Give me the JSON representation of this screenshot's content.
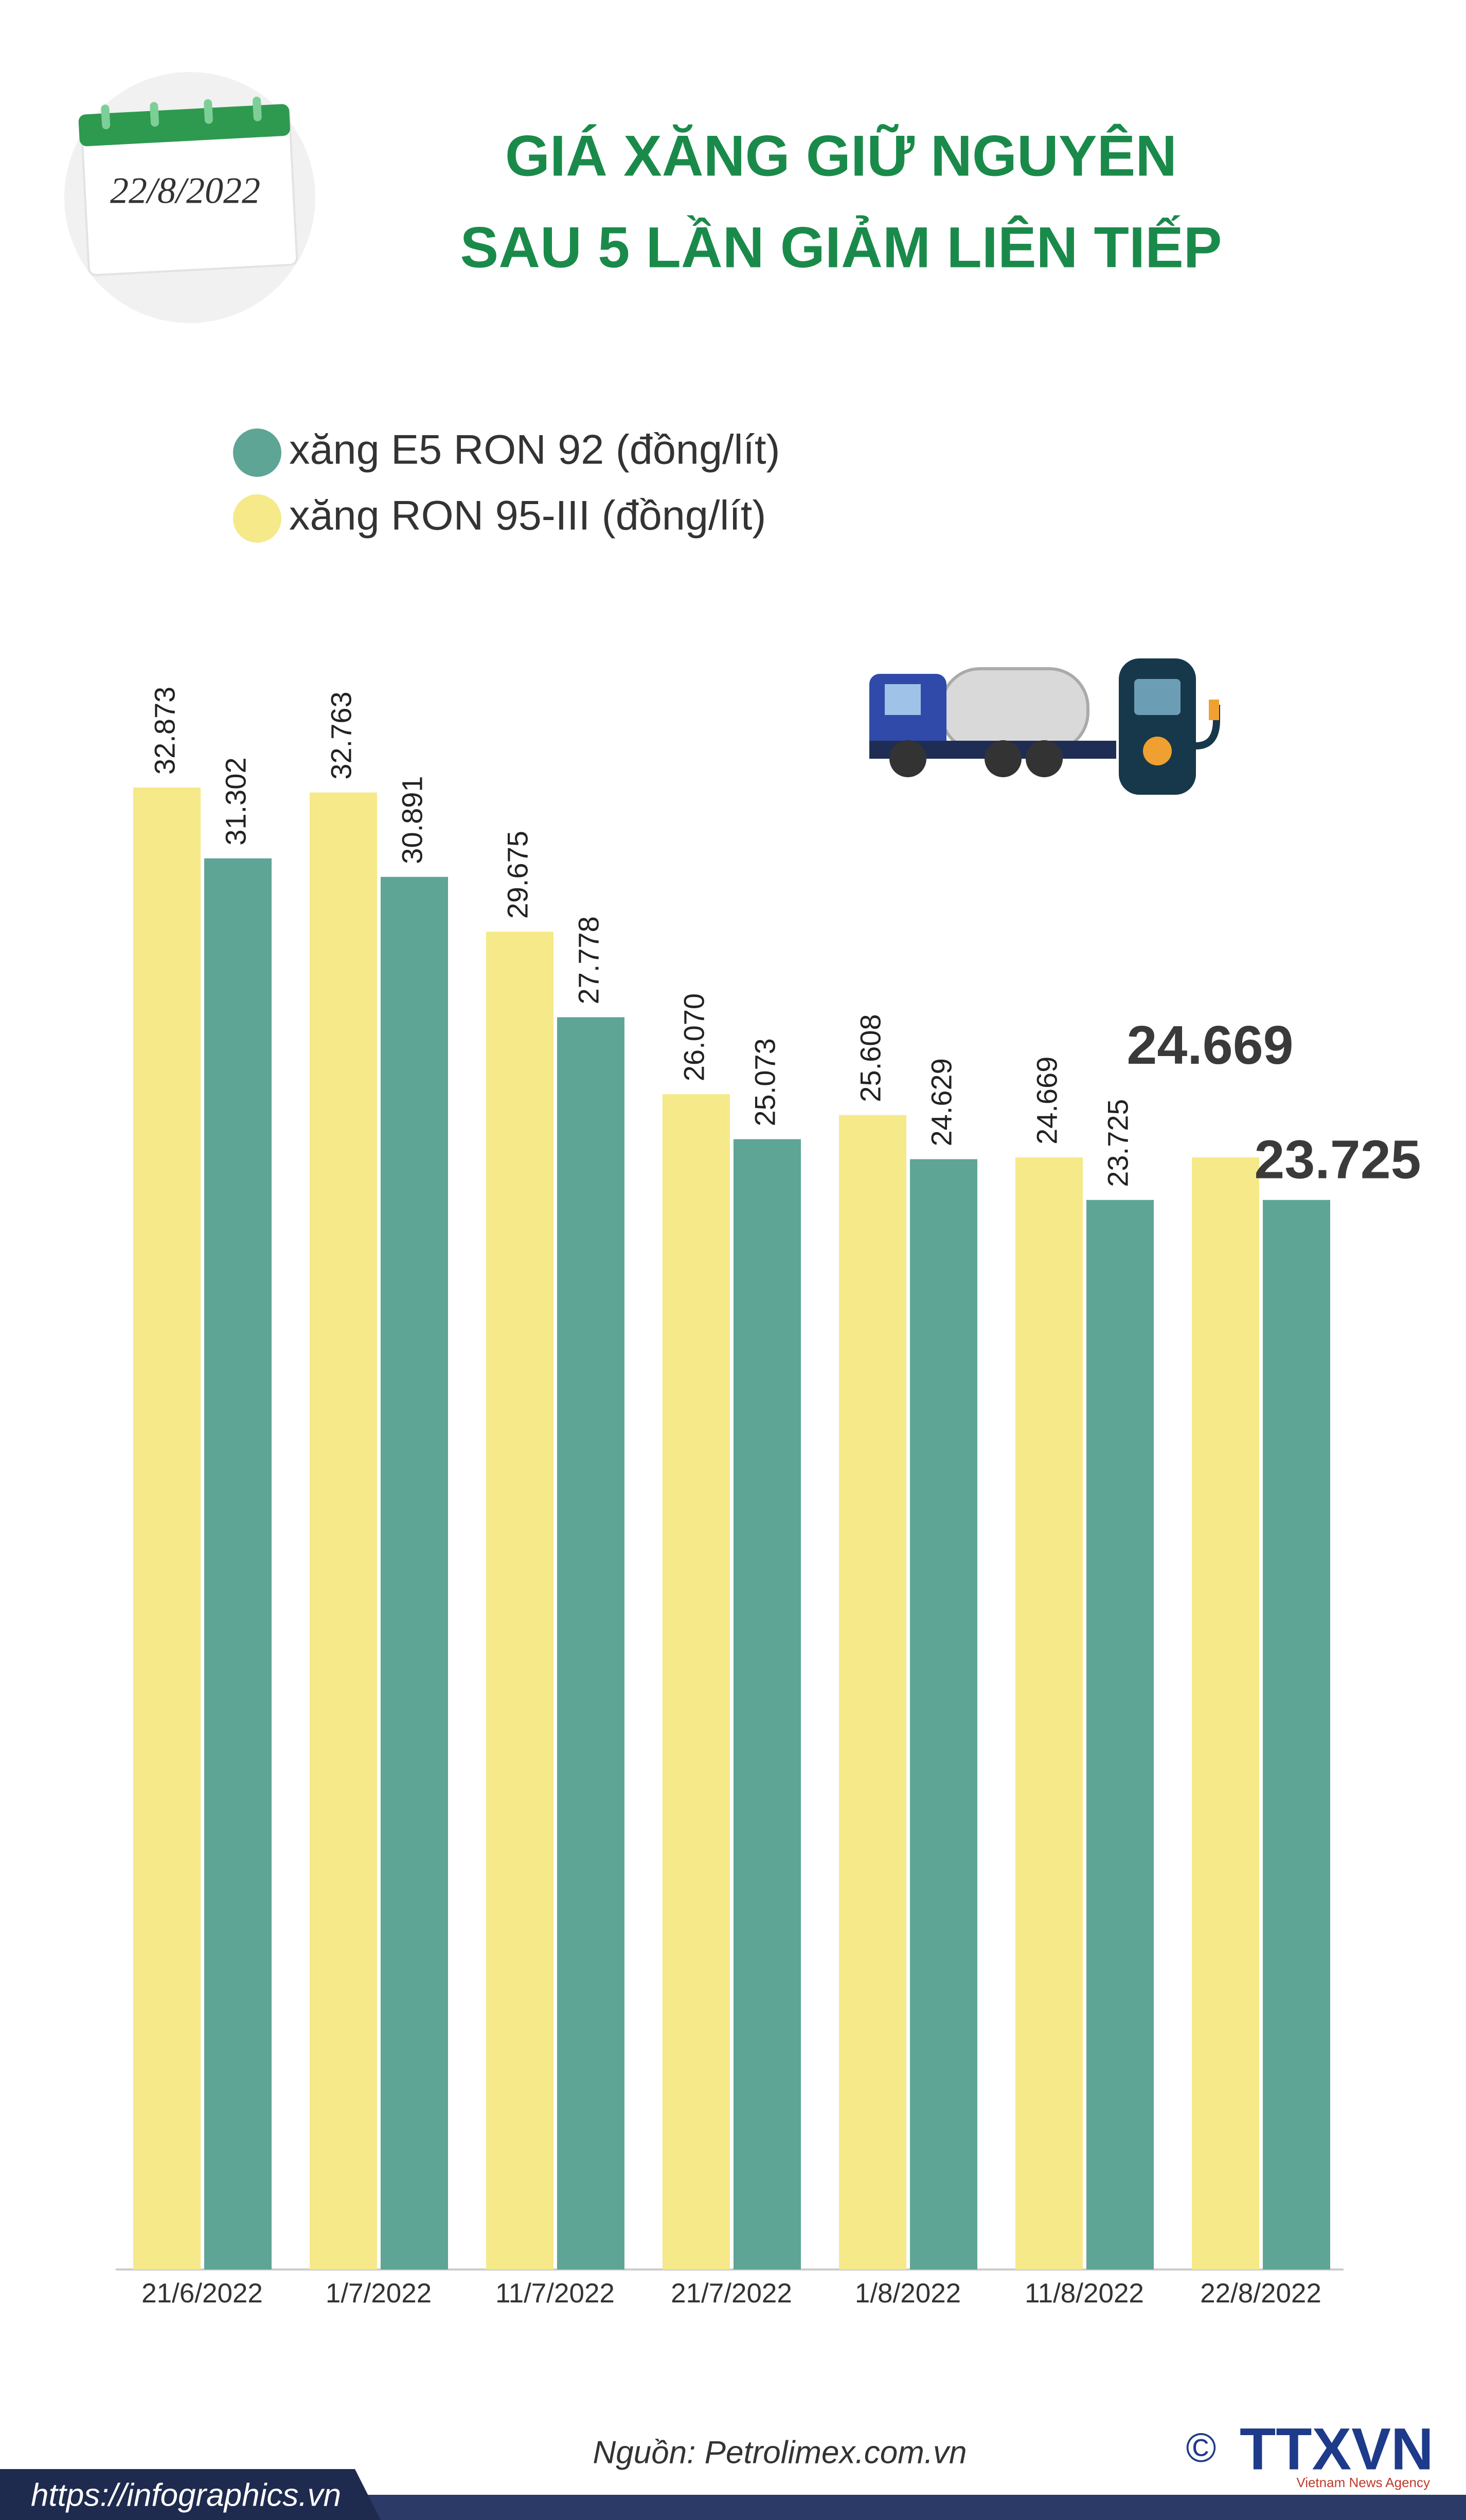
{
  "badge_date": "22/8/2022",
  "chart_data": {
    "type": "bar",
    "title": [
      "GIÁ XĂNG GIỮ NGUYÊN",
      "SAU 5 LẦN GIẢM LIÊN TIẾP"
    ],
    "categories": [
      "21/6/2022",
      "1/7/2022",
      "11/7/2022",
      "21/7/2022",
      "1/8/2022",
      "11/8/2022",
      "22/8/2022"
    ],
    "series": [
      {
        "name": "xăng E5 RON 92 (đồng/lít)",
        "color": "#5ea596",
        "values": [
          31302,
          30891,
          27778,
          25073,
          24629,
          23725,
          23725
        ],
        "value_labels": [
          "31.302",
          "30.891",
          "27.778",
          "25.073",
          "24.629",
          "23.725",
          "23.725"
        ]
      },
      {
        "name": "xăng RON 95-III (đồng/lít)",
        "color": "#f5e98a",
        "values": [
          32873,
          32763,
          29675,
          26070,
          25608,
          24669,
          24669
        ],
        "value_labels": [
          "32.873",
          "32.763",
          "29.675",
          "26.070",
          "25.608",
          "24.669",
          "24.669"
        ]
      }
    ]
  },
  "footer": {
    "source": "Nguồn: Petrolimex.com.vn",
    "url": "https://infographics.vn",
    "copyright": "©",
    "logo": "TTXVN",
    "agency": "Vietnam News Agency"
  }
}
